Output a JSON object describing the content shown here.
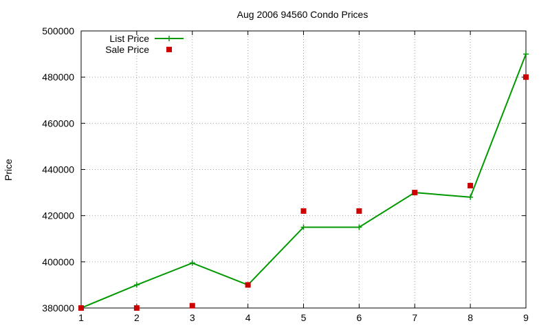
{
  "chart_data": {
    "type": "line",
    "title": "Aug 2006 94560 Condo Prices",
    "xlabel": "",
    "ylabel": "Price",
    "x": [
      1,
      2,
      3,
      4,
      5,
      6,
      7,
      8,
      9
    ],
    "xlim": [
      1,
      9
    ],
    "ylim": [
      380000,
      500000
    ],
    "xticks": [
      "1",
      "2",
      "3",
      "4",
      "5",
      "6",
      "7",
      "8",
      "9"
    ],
    "yticks": [
      "380000",
      "400000",
      "420000",
      "440000",
      "460000",
      "480000",
      "500000"
    ],
    "grid": true,
    "legend_position": "top-left",
    "series": [
      {
        "name": "List Price",
        "style": "linespoints",
        "marker": "plus",
        "color": "#009900",
        "values": [
          380000,
          390000,
          399500,
          390000,
          415000,
          415000,
          430000,
          428000,
          490000
        ]
      },
      {
        "name": "Sale Price",
        "style": "points",
        "marker": "square",
        "color": "#cc0000",
        "values": [
          380000,
          380000,
          381000,
          390000,
          422000,
          422000,
          430000,
          433000,
          480000
        ]
      }
    ]
  }
}
